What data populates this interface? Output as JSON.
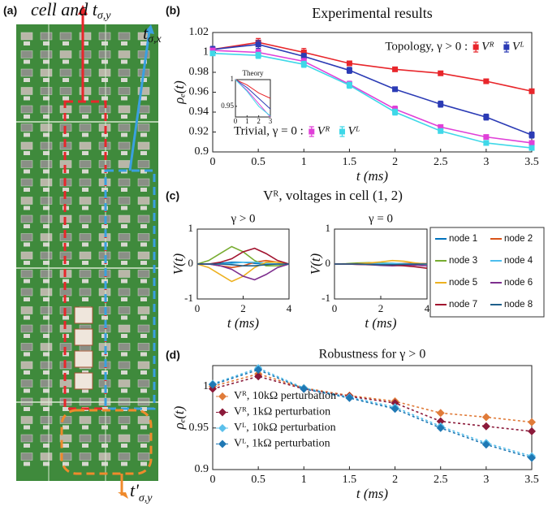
{
  "panel_labels": [
    "(a)",
    "(b)",
    "(c)",
    "(d)"
  ],
  "figure_c_title": "Vᴿ,  voltages in cell (1, 2)",
  "photo": {
    "cell": {
      "text": "cell and t",
      "sub": "σ,y"
    },
    "x_coupling": {
      "text": "t",
      "sub": "σ,x"
    },
    "y_coupling": {
      "text": "t'",
      "sub": "σ,y"
    }
  },
  "chart_data": [
    {
      "type": "line",
      "title": "Experimental results",
      "xlabel": "t (ms)",
      "ylabel": "ρₑ(t)",
      "x": [
        0,
        0.5,
        1,
        1.5,
        2,
        2.5,
        3,
        3.5
      ],
      "xlim": [
        0,
        3.5
      ],
      "xticks": [
        0,
        0.5,
        1,
        1.5,
        2,
        2.5,
        3,
        3.5
      ],
      "ylim": [
        0.9,
        1.02
      ],
      "yticks": [
        0.9,
        0.92,
        0.94,
        0.96,
        0.98,
        1,
        1.02
      ],
      "marker": "square",
      "legend_titles": [
        "Topology, γ > 0 :",
        "Trivial, γ = 0 :"
      ],
      "series": [
        {
          "name": "Vᴿ",
          "color": "#e8262b",
          "values": [
            1.003,
            1.01,
            1.0,
            0.989,
            0.983,
            0.979,
            0.971,
            0.961
          ],
          "errors": [
            0.003,
            0.004,
            0.004,
            0.002,
            0.002,
            0.002,
            0.002,
            0.002
          ]
        },
        {
          "name": "Vᴸ",
          "color": "#2b3bb5",
          "values": [
            1.003,
            1.008,
            0.996,
            0.982,
            0.963,
            0.948,
            0.935,
            0.917
          ],
          "errors": [
            0.003,
            0.004,
            0.003,
            0.003,
            0.002,
            0.003,
            0.003,
            0.003
          ]
        },
        {
          "name": "Vᴿ",
          "color": "#e040d8",
          "values": [
            1.002,
            1.0,
            0.991,
            0.968,
            0.943,
            0.925,
            0.915,
            0.909
          ],
          "errors": [
            0.002,
            0.003,
            0.003,
            0.003,
            0.003,
            0.002,
            0.002,
            0.002
          ]
        },
        {
          "name": "Vᴸ",
          "color": "#3fd8e8",
          "values": [
            0.999,
            0.997,
            0.988,
            0.967,
            0.94,
            0.921,
            0.909,
            0.904
          ],
          "errors": [
            0.002,
            0.003,
            0.003,
            0.003,
            0.003,
            0.002,
            0.002,
            0.002
          ]
        }
      ]
    },
    {
      "type": "line",
      "title": "Theory",
      "x": [
        0,
        1,
        2,
        3
      ],
      "xlim": [
        0,
        3
      ],
      "xticks": [
        0,
        1,
        2,
        3
      ],
      "ylim": [
        0.93,
        1.0
      ],
      "yticks": [
        0.95,
        1
      ],
      "series": [
        {
          "color": "#e8262b",
          "values": [
            1.0,
            0.99,
            0.975,
            0.965
          ]
        },
        {
          "color": "#2b3bb5",
          "values": [
            1.0,
            0.985,
            0.965,
            0.945
          ]
        },
        {
          "color": "#e040d8",
          "values": [
            1.0,
            0.98,
            0.955,
            0.93
          ]
        },
        {
          "color": "#3fd8e8",
          "values": [
            1.0,
            0.978,
            0.95,
            0.932
          ]
        }
      ]
    },
    {
      "type": "line",
      "title": "γ > 0",
      "xlabel": "t (ms)",
      "ylabel": "V(t)",
      "x": [
        0,
        0.5,
        1,
        1.5,
        2,
        2.5,
        3,
        3.5,
        4
      ],
      "xlim": [
        0,
        4
      ],
      "xticks": [
        0,
        2,
        4
      ],
      "ylim": [
        -1,
        1
      ],
      "yticks": [
        -1,
        0,
        1
      ],
      "series": [
        {
          "name": "node 1",
          "color": "#0072bd",
          "values": [
            0,
            0,
            0.02,
            0.05,
            0.05,
            0.02,
            0,
            0,
            0
          ]
        },
        {
          "name": "node 2",
          "color": "#d95319",
          "values": [
            0,
            0,
            -0.05,
            -0.1,
            -0.05,
            0.05,
            0.1,
            0.05,
            0
          ]
        },
        {
          "name": "node 3",
          "color": "#77ac30",
          "values": [
            0,
            0.1,
            0.3,
            0.5,
            0.35,
            0.1,
            -0.05,
            -0.05,
            0
          ]
        },
        {
          "name": "node 4",
          "color": "#4dbeee",
          "values": [
            0,
            0,
            0,
            0.02,
            0.05,
            0.05,
            0.02,
            0,
            0
          ]
        },
        {
          "name": "node 5",
          "color": "#edb120",
          "values": [
            0,
            -0.1,
            -0.3,
            -0.5,
            -0.35,
            -0.1,
            0.05,
            0.05,
            0
          ]
        },
        {
          "name": "node 6",
          "color": "#7e2f8e",
          "values": [
            0,
            0,
            -0.05,
            -0.15,
            -0.35,
            -0.45,
            -0.3,
            -0.1,
            0
          ]
        },
        {
          "name": "node 7",
          "color": "#a2142f",
          "values": [
            0,
            0,
            0.05,
            0.15,
            0.35,
            0.45,
            0.3,
            0.1,
            0
          ]
        },
        {
          "name": "node 8",
          "color": "#1f5f8b",
          "values": [
            0,
            0,
            0,
            -0.02,
            -0.05,
            -0.05,
            -0.02,
            0,
            0
          ]
        }
      ]
    },
    {
      "type": "line",
      "title": "γ = 0",
      "xlabel": "t (ms)",
      "ylabel": "V(t)",
      "x": [
        0,
        0.5,
        1,
        1.5,
        2,
        2.5,
        3,
        3.5,
        4
      ],
      "xlim": [
        0,
        4
      ],
      "xticks": [
        0,
        2,
        4
      ],
      "ylim": [
        -1,
        1
      ],
      "yticks": [
        -1,
        0,
        1
      ],
      "series": [
        {
          "color": "#0072bd",
          "values": [
            0,
            0,
            0,
            0.01,
            0.02,
            0.02,
            0.01,
            0,
            0
          ]
        },
        {
          "color": "#d95319",
          "values": [
            0,
            0,
            -0.01,
            -0.02,
            -0.02,
            0,
            0.02,
            0.02,
            0.01
          ]
        },
        {
          "color": "#77ac30",
          "values": [
            0,
            0.01,
            0.03,
            0.04,
            0.03,
            0.02,
            0,
            -0.01,
            0
          ]
        },
        {
          "color": "#4dbeee",
          "values": [
            0,
            0,
            0,
            0.01,
            0.02,
            0.02,
            0.01,
            0,
            0
          ]
        },
        {
          "color": "#edb120",
          "values": [
            0,
            0,
            0.01,
            0.03,
            0.06,
            0.1,
            0.08,
            0.03,
            0
          ]
        },
        {
          "color": "#7e2f8e",
          "values": [
            0,
            0,
            -0.01,
            -0.02,
            -0.04,
            -0.05,
            -0.04,
            -0.03,
            -0.05
          ]
        },
        {
          "color": "#a2142f",
          "values": [
            0,
            0,
            0,
            -0.01,
            -0.02,
            -0.03,
            -0.05,
            -0.08,
            -0.12
          ]
        },
        {
          "color": "#1f5f8b",
          "values": [
            0,
            0,
            0,
            -0.01,
            -0.02,
            -0.02,
            -0.01,
            0,
            0
          ]
        }
      ]
    },
    {
      "type": "line",
      "title": "Robustness for γ > 0",
      "xlabel": "t (ms)",
      "ylabel": "ρₑ(t)",
      "x": [
        0,
        0.5,
        1,
        1.5,
        2,
        2.5,
        3,
        3.5
      ],
      "xlim": [
        0,
        3.5
      ],
      "xticks": [
        0,
        0.5,
        1,
        1.5,
        2,
        2.5,
        3,
        3.5
      ],
      "ylim": [
        0.9,
        1.025
      ],
      "yticks": [
        0.9,
        0.95,
        1
      ],
      "marker": "diamond",
      "linestyle": "dashed",
      "series": [
        {
          "name": "Vᴿ, 10kΩ perturbation",
          "color": "#e07b39",
          "values": [
            1.0,
            1.015,
            0.998,
            0.989,
            0.982,
            0.968,
            0.963,
            0.957
          ]
        },
        {
          "name": "Vᴿ, 1kΩ perturbation",
          "color": "#8b1a3a",
          "values": [
            0.997,
            1.012,
            0.997,
            0.988,
            0.98,
            0.958,
            0.952,
            0.946
          ]
        },
        {
          "name": "Vᴸ, 10kΩ perturbation",
          "color": "#5bc0eb",
          "values": [
            1.003,
            1.022,
            0.998,
            0.987,
            0.975,
            0.952,
            0.932,
            0.916
          ]
        },
        {
          "name": "Vᴸ, 1kΩ perturbation",
          "color": "#1f78b4",
          "values": [
            1.002,
            1.02,
            0.997,
            0.986,
            0.973,
            0.95,
            0.93,
            0.914
          ]
        }
      ]
    }
  ]
}
